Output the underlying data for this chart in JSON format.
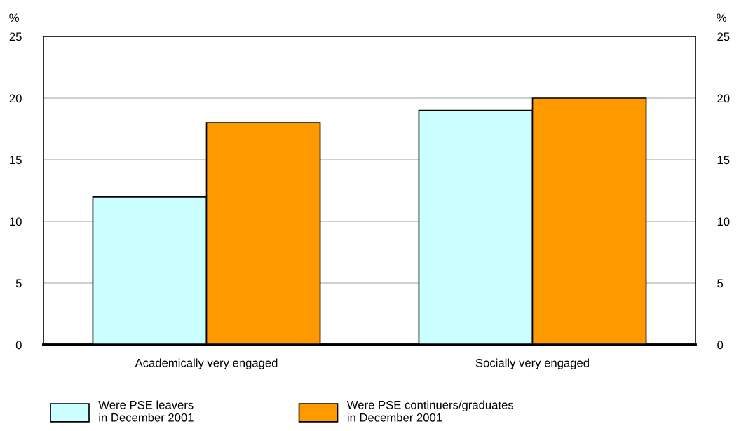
{
  "chart_data": {
    "type": "bar",
    "categories": [
      "Academically very engaged",
      "Socially very engaged"
    ],
    "series": [
      {
        "name": "Were PSE leavers\nin December 2001",
        "color": "#ccffff",
        "values": [
          12,
          19
        ]
      },
      {
        "name": "Were PSE continuers/graduates\nin December 2001",
        "color": "#ff9900",
        "values": [
          18,
          20
        ]
      }
    ],
    "ylabel": "%",
    "y2label": "%",
    "ylim": [
      0,
      25
    ],
    "yticks": [
      0,
      5,
      10,
      15,
      20,
      25
    ],
    "y2lim": [
      0,
      25
    ],
    "y2ticks": [
      0,
      5,
      10,
      15,
      20,
      25
    ],
    "grid": "y",
    "legend": "bottom"
  }
}
